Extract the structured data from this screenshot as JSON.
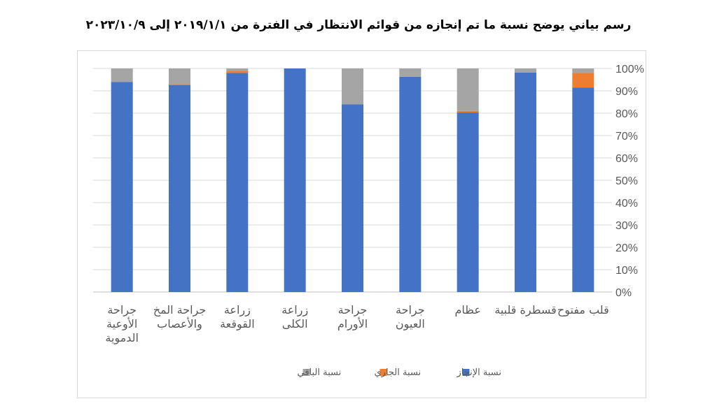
{
  "chart_data": {
    "type": "bar",
    "stacked": true,
    "percent": true,
    "title": "رسم بياني يوضح نسبة ما تم إنجازه من قوائم الانتظار في الفترة من ٢٠١٩/١/١ إلى ٢٠٢٣/١٠/٩",
    "categories": [
      "جراحة الأوعية الدموية",
      "جراحة المخ والأعصاب",
      "زراعة القوقعة",
      "زراعة الكلى",
      "جراحة الأورام",
      "جراحة العيون",
      "عظام",
      "قسطرة قلبية",
      "قلب مفتوح"
    ],
    "category_lines": [
      [
        "جراحة",
        "الأوعية",
        "الدموية"
      ],
      [
        "جراحة المخ",
        "والأعصاب"
      ],
      [
        "زراعة",
        "القوقعة"
      ],
      [
        "زراعة",
        "الكلى"
      ],
      [
        "جراحة",
        "الأورام"
      ],
      [
        "جراحة",
        "العيون"
      ],
      [
        "عظام"
      ],
      [
        "قسطرة قلبية"
      ],
      [
        "قلب مفتوح"
      ]
    ],
    "series": [
      {
        "name": "نسبة الإنجاز",
        "color": "#4472c4",
        "values": [
          94,
          92.5,
          98,
          100,
          84,
          96.3,
          80.3,
          98.2,
          91.5
        ]
      },
      {
        "name": "نسبة الجاري",
        "color": "#ed7d31",
        "values": [
          0,
          0.5,
          1,
          0,
          0,
          0,
          0.7,
          0,
          6.5
        ]
      },
      {
        "name": "نسبة الباقي",
        "color": "#a5a5a5",
        "values": [
          6,
          7,
          1,
          0,
          16,
          3.7,
          19,
          1.8,
          2
        ]
      }
    ],
    "y_ticks": [
      "0%",
      "10%",
      "20%",
      "30%",
      "40%",
      "50%",
      "60%",
      "70%",
      "80%",
      "90%",
      "100%"
    ],
    "ylim": [
      0,
      100
    ],
    "y_axis_position": "right",
    "grid": true,
    "legend_position": "bottom"
  }
}
